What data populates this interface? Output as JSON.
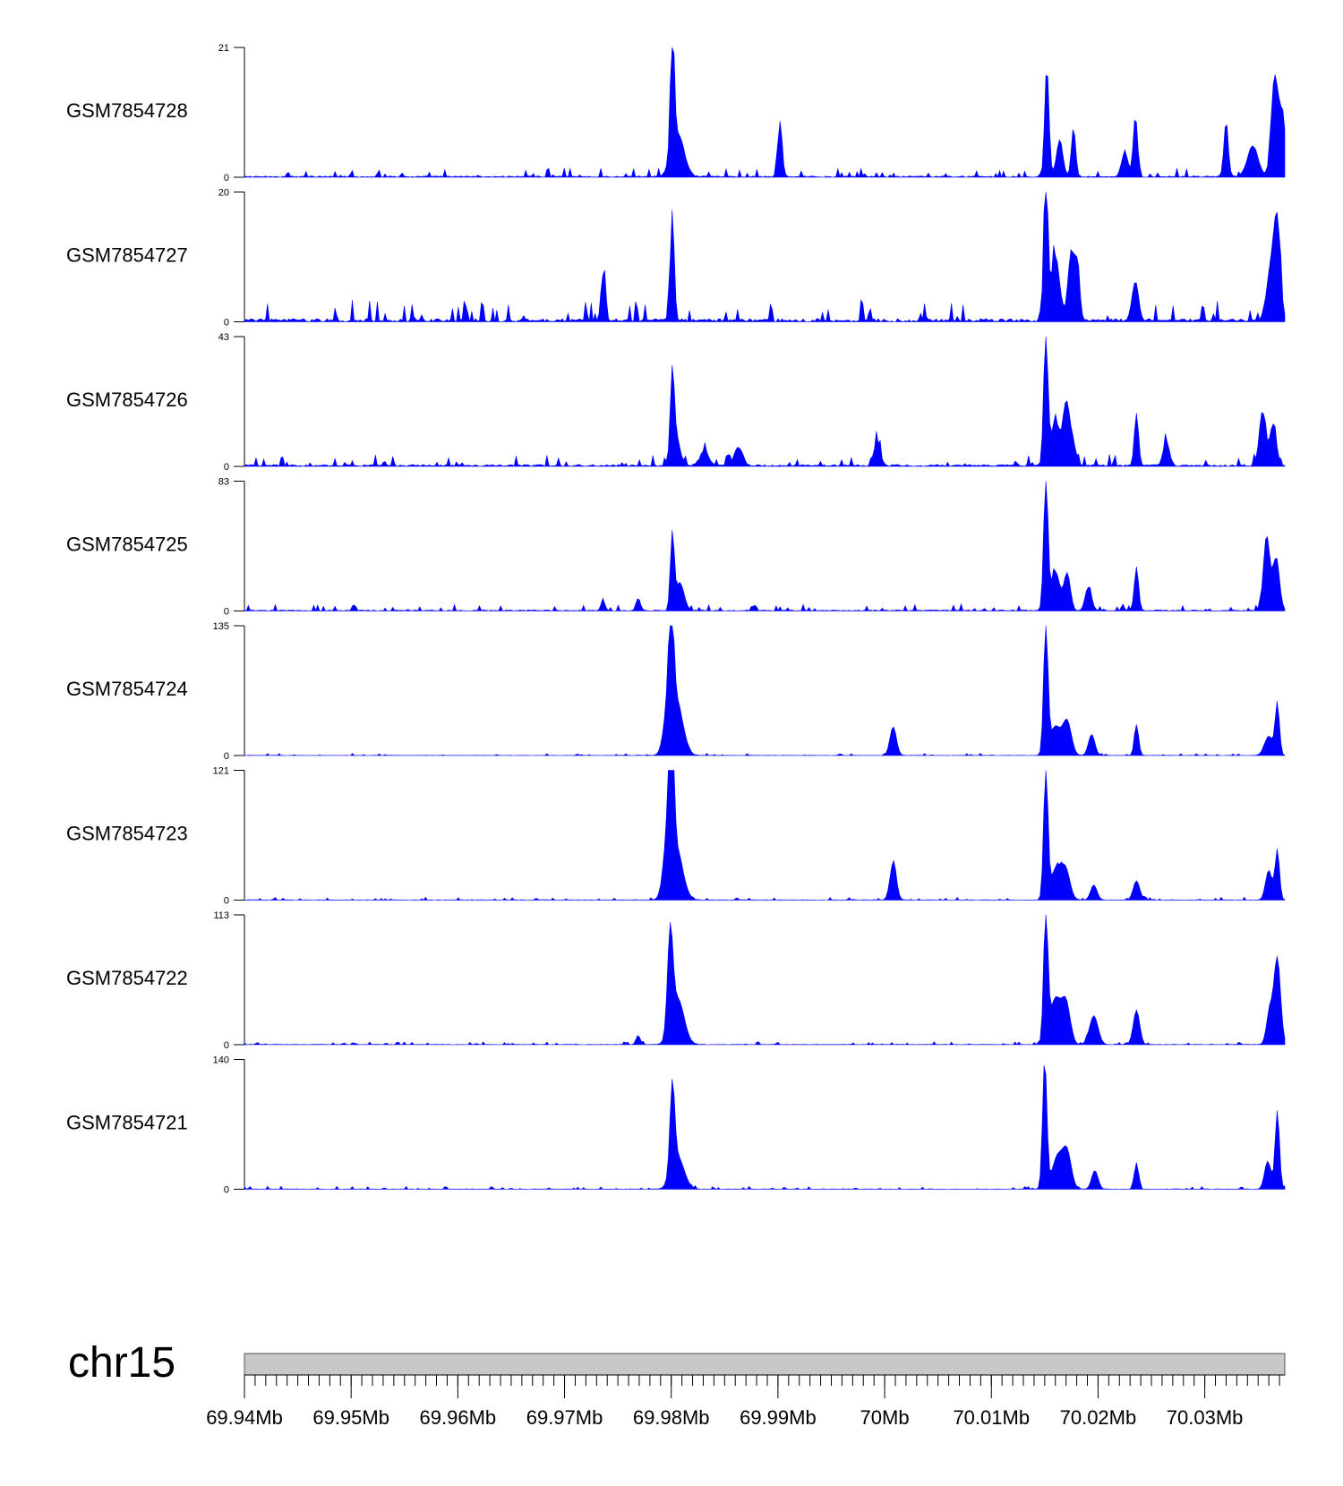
{
  "chart_data": {
    "type": "area",
    "chromosome": "chr15",
    "x_unit": "Mb",
    "xlim": [
      69.94,
      70.0375
    ],
    "x_ticks": [
      69.94,
      69.95,
      69.96,
      69.97,
      69.98,
      69.99,
      70.0,
      70.01,
      70.02,
      70.03
    ],
    "x_tick_labels": [
      "69.94Mb",
      "69.95Mb",
      "69.96Mb",
      "69.97Mb",
      "69.98Mb",
      "69.99Mb",
      "70Mb",
      "70.01Mb",
      "70.02Mb",
      "70.03Mb"
    ],
    "fill_color": "#0000ff",
    "baseline_noise": [
      0.025,
      0.06,
      0.035,
      0.02,
      0.006,
      0.008,
      0.008,
      0.008
    ],
    "tracks": [
      {
        "name": "GSM7854728",
        "ymax": 21,
        "ymin": 0,
        "peaks": [
          [
            69.9801,
            21,
            0.00018
          ],
          [
            69.9806,
            7,
            0.0006
          ],
          [
            70.0152,
            18,
            0.0002
          ],
          [
            70.0164,
            6,
            0.0003
          ],
          [
            70.0177,
            8,
            0.0002
          ],
          [
            70.0235,
            10,
            0.0002
          ],
          [
            70.0225,
            4,
            0.0003
          ],
          [
            69.9902,
            9,
            0.0002
          ],
          [
            70.032,
            9,
            0.0002
          ],
          [
            70.0365,
            14,
            0.0003
          ],
          [
            70.0372,
            10,
            0.0004
          ],
          [
            70.0345,
            5,
            0.0005
          ]
        ]
      },
      {
        "name": "GSM7854727",
        "ymax": 20,
        "ymin": 0,
        "peaks": [
          [
            69.9801,
            17,
            0.00018
          ],
          [
            70.0151,
            20,
            0.0002
          ],
          [
            70.016,
            10,
            0.0004
          ],
          [
            70.0175,
            11,
            0.0003
          ],
          [
            70.0181,
            8,
            0.0002
          ],
          [
            70.0235,
            6,
            0.0003
          ],
          [
            69.9736,
            7,
            0.0002
          ],
          [
            70.0368,
            14,
            0.0003
          ],
          [
            70.0362,
            8,
            0.0004
          ]
        ]
      },
      {
        "name": "GSM7854726",
        "ymax": 43,
        "ymin": 0,
        "peaks": [
          [
            69.9801,
            26,
            0.00018
          ],
          [
            69.9804,
            10,
            0.0004
          ],
          [
            70.0151,
            43,
            0.0002
          ],
          [
            70.016,
            15,
            0.0004
          ],
          [
            70.017,
            20,
            0.0003
          ],
          [
            70.0176,
            8,
            0.0003
          ],
          [
            70.0236,
            17,
            0.0002
          ],
          [
            70.0354,
            18,
            0.0003
          ],
          [
            70.0364,
            14,
            0.0003
          ],
          [
            69.9993,
            8,
            0.0003
          ],
          [
            70.0264,
            8,
            0.0003
          ],
          [
            69.9831,
            5,
            0.0004
          ],
          [
            69.9863,
            6,
            0.0004
          ]
        ]
      },
      {
        "name": "GSM7854725",
        "ymax": 83,
        "ymin": 0,
        "peaks": [
          [
            69.9801,
            48,
            0.00018
          ],
          [
            69.9808,
            18,
            0.0004
          ],
          [
            70.0151,
            83,
            0.0002
          ],
          [
            70.016,
            25,
            0.0004
          ],
          [
            70.0171,
            24,
            0.0003
          ],
          [
            70.0191,
            15,
            0.0003
          ],
          [
            70.0236,
            28,
            0.0002
          ],
          [
            70.0358,
            48,
            0.0003
          ],
          [
            70.0367,
            34,
            0.0003
          ],
          [
            69.9769,
            8,
            0.0002
          ],
          [
            69.9736,
            6,
            0.0002
          ]
        ]
      },
      {
        "name": "GSM7854724",
        "ymax": 135,
        "ymin": 0,
        "peaks": [
          [
            69.98,
            110,
            0.00022
          ],
          [
            69.9805,
            55,
            0.0006
          ],
          [
            69.9797,
            40,
            0.0004
          ],
          [
            70.0151,
            135,
            0.0002
          ],
          [
            70.016,
            30,
            0.0005
          ],
          [
            70.0171,
            35,
            0.0004
          ],
          [
            70.0194,
            22,
            0.0003
          ],
          [
            70.0236,
            32,
            0.0002
          ],
          [
            70.0008,
            30,
            0.0003
          ],
          [
            70.0368,
            52,
            0.0002
          ],
          [
            70.036,
            20,
            0.0004
          ]
        ]
      },
      {
        "name": "GSM7854723",
        "ymax": 121,
        "ymin": 0,
        "peaks": [
          [
            69.98,
            121,
            0.00022
          ],
          [
            69.9805,
            45,
            0.0006
          ],
          [
            69.9797,
            55,
            0.0004
          ],
          [
            70.0151,
            121,
            0.0002
          ],
          [
            70.0161,
            30,
            0.0005
          ],
          [
            70.017,
            25,
            0.0004
          ],
          [
            70.0196,
            14,
            0.0003
          ],
          [
            70.0236,
            18,
            0.0003
          ],
          [
            70.0008,
            35,
            0.0003
          ],
          [
            70.0368,
            47,
            0.0002
          ],
          [
            70.036,
            28,
            0.0003
          ]
        ]
      },
      {
        "name": "GSM7854722",
        "ymax": 113,
        "ymin": 0,
        "peaks": [
          [
            69.9799,
            86,
            0.00025
          ],
          [
            69.9806,
            40,
            0.0006
          ],
          [
            70.0151,
            113,
            0.0002
          ],
          [
            70.016,
            40,
            0.0005
          ],
          [
            70.017,
            35,
            0.0004
          ],
          [
            70.0196,
            25,
            0.0004
          ],
          [
            70.0236,
            30,
            0.0003
          ],
          [
            70.0368,
            75,
            0.0003
          ],
          [
            70.0361,
            30,
            0.0003
          ],
          [
            69.9769,
            8,
            0.0002
          ]
        ]
      },
      {
        "name": "GSM7854721",
        "ymax": 140,
        "ymin": 0,
        "peaks": [
          [
            69.9801,
            95,
            0.00022
          ],
          [
            69.9806,
            35,
            0.0006
          ],
          [
            70.015,
            140,
            0.0002
          ],
          [
            70.0162,
            35,
            0.0005
          ],
          [
            70.0171,
            38,
            0.0004
          ],
          [
            70.0197,
            20,
            0.0003
          ],
          [
            70.0236,
            28,
            0.0002
          ],
          [
            70.0368,
            85,
            0.0002
          ],
          [
            70.0359,
            30,
            0.0003
          ]
        ]
      }
    ]
  }
}
